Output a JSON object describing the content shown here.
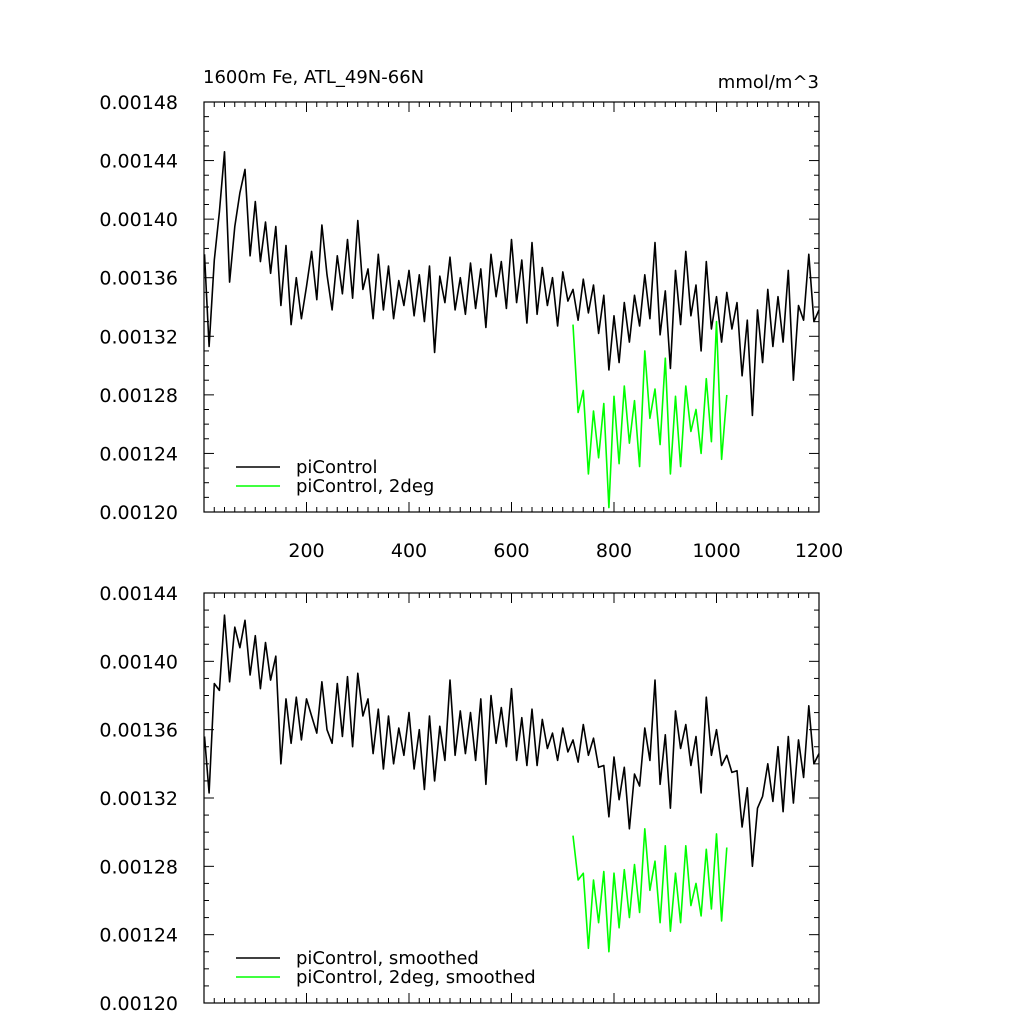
{
  "chart_data": [
    {
      "type": "line",
      "title": "1600m Fe, ATL_49N-66N",
      "units": "mmol/m^3",
      "xlim": [
        0,
        1200
      ],
      "ylim": [
        0.0012,
        0.00148
      ],
      "x_ticks": [
        "200",
        "400",
        "600",
        "800",
        "1000",
        "1200"
      ],
      "y_ticks": [
        "0.00120",
        "0.00124",
        "0.00128",
        "0.00132",
        "0.00136",
        "0.00140",
        "0.00144",
        "0.00148"
      ],
      "legend_position": "bottom-left",
      "series": [
        {
          "name": "piControl",
          "color": "#000000",
          "x": [
            1,
            10,
            20,
            30,
            40,
            50,
            60,
            70,
            80,
            90,
            100,
            110,
            120,
            130,
            140,
            150,
            160,
            170,
            180,
            190,
            200,
            210,
            220,
            230,
            240,
            250,
            260,
            270,
            280,
            290,
            300,
            310,
            320,
            330,
            340,
            350,
            360,
            370,
            380,
            390,
            400,
            410,
            420,
            430,
            440,
            450,
            460,
            470,
            480,
            490,
            500,
            510,
            520,
            530,
            540,
            550,
            560,
            570,
            580,
            590,
            600,
            610,
            620,
            630,
            640,
            650,
            660,
            670,
            680,
            690,
            700,
            710,
            720,
            730,
            740,
            750,
            760,
            770,
            780,
            790,
            800,
            810,
            820,
            830,
            840,
            850,
            860,
            870,
            880,
            890,
            900,
            910,
            920,
            930,
            940,
            950,
            960,
            970,
            980,
            990,
            1000,
            1010,
            1020,
            1030,
            1040,
            1050,
            1060,
            1070,
            1080,
            1090,
            1100,
            1110,
            1120,
            1130,
            1140,
            1150,
            1160,
            1170,
            1180,
            1190,
            1200
          ],
          "y": [
            0.001376,
            0.001313,
            0.001372,
            0.001405,
            0.001446,
            0.001357,
            0.001395,
            0.001418,
            0.001434,
            0.001375,
            0.001412,
            0.001371,
            0.001398,
            0.001363,
            0.001395,
            0.001341,
            0.001382,
            0.001328,
            0.00136,
            0.001332,
            0.001354,
            0.001378,
            0.001345,
            0.001396,
            0.001362,
            0.001338,
            0.001375,
            0.001349,
            0.001386,
            0.001346,
            0.001399,
            0.001352,
            0.001366,
            0.001332,
            0.001376,
            0.001338,
            0.001368,
            0.001332,
            0.001358,
            0.001341,
            0.001365,
            0.001334,
            0.001362,
            0.00133,
            0.001368,
            0.001309,
            0.001361,
            0.001343,
            0.001374,
            0.001338,
            0.00136,
            0.001335,
            0.00137,
            0.001339,
            0.001366,
            0.001326,
            0.001376,
            0.001347,
            0.001371,
            0.001339,
            0.001386,
            0.001343,
            0.001372,
            0.001329,
            0.001384,
            0.001335,
            0.001367,
            0.001341,
            0.00136,
            0.001327,
            0.001364,
            0.001344,
            0.001352,
            0.001331,
            0.001359,
            0.001336,
            0.001355,
            0.001322,
            0.001348,
            0.001297,
            0.001334,
            0.001302,
            0.001343,
            0.001316,
            0.001348,
            0.001327,
            0.001362,
            0.001332,
            0.001384,
            0.001321,
            0.001351,
            0.001298,
            0.001365,
            0.001328,
            0.001378,
            0.001334,
            0.001355,
            0.00131,
            0.001371,
            0.001325,
            0.001347,
            0.001316,
            0.00135,
            0.001325,
            0.001343,
            0.001293,
            0.001331,
            0.001266,
            0.001338,
            0.001302,
            0.001352,
            0.001313,
            0.001347,
            0.001316,
            0.001365,
            0.00129,
            0.001341,
            0.001331,
            0.001376,
            0.00133,
            0.001338
          ]
        },
        {
          "name": "piControl, 2deg",
          "color": "#00ff00",
          "x": [
            720,
            730,
            740,
            750,
            760,
            770,
            780,
            790,
            800,
            810,
            820,
            830,
            840,
            850,
            860,
            870,
            880,
            890,
            900,
            910,
            920,
            930,
            940,
            950,
            960,
            970,
            980,
            990,
            1000,
            1010,
            1020
          ],
          "y": [
            0.001328,
            0.001268,
            0.001283,
            0.001226,
            0.001269,
            0.001237,
            0.001274,
            0.001203,
            0.001279,
            0.001233,
            0.001286,
            0.001247,
            0.001276,
            0.001231,
            0.00131,
            0.001264,
            0.001284,
            0.001246,
            0.001305,
            0.001226,
            0.001279,
            0.001231,
            0.001286,
            0.001255,
            0.00127,
            0.00124,
            0.001291,
            0.001248,
            0.00133,
            0.001236,
            0.00128
          ]
        }
      ]
    },
    {
      "type": "line",
      "title": "",
      "xlim": [
        0,
        1200
      ],
      "ylim": [
        0.0012,
        0.00144
      ],
      "x_ticks": [],
      "y_ticks": [
        "0.00120",
        "0.00124",
        "0.00128",
        "0.00132",
        "0.00136",
        "0.00140",
        "0.00144"
      ],
      "legend_position": "bottom-left",
      "series": [
        {
          "name": "piControl, smoothed",
          "color": "#000000",
          "x": [
            1,
            10,
            20,
            30,
            40,
            50,
            60,
            70,
            80,
            90,
            100,
            110,
            120,
            130,
            140,
            150,
            160,
            170,
            180,
            190,
            200,
            210,
            220,
            230,
            240,
            250,
            260,
            270,
            280,
            290,
            300,
            310,
            320,
            330,
            340,
            350,
            360,
            370,
            380,
            390,
            400,
            410,
            420,
            430,
            440,
            450,
            460,
            470,
            480,
            490,
            500,
            510,
            520,
            530,
            540,
            550,
            560,
            570,
            580,
            590,
            600,
            610,
            620,
            630,
            640,
            650,
            660,
            670,
            680,
            690,
            700,
            710,
            720,
            730,
            740,
            750,
            760,
            770,
            780,
            790,
            800,
            810,
            820,
            830,
            840,
            850,
            860,
            870,
            880,
            890,
            900,
            910,
            920,
            930,
            940,
            950,
            960,
            970,
            980,
            990,
            1000,
            1010,
            1020,
            1030,
            1040,
            1050,
            1060,
            1070,
            1080,
            1090,
            1100,
            1110,
            1120,
            1130,
            1140,
            1150,
            1160,
            1170,
            1180,
            1190,
            1200
          ],
          "y": [
            0.001356,
            0.001323,
            0.001387,
            0.001383,
            0.001427,
            0.001388,
            0.00142,
            0.001408,
            0.001424,
            0.001392,
            0.001415,
            0.001384,
            0.001411,
            0.001389,
            0.001403,
            0.00134,
            0.001378,
            0.001352,
            0.001379,
            0.001354,
            0.001378,
            0.001368,
            0.001358,
            0.001388,
            0.00136,
            0.001352,
            0.001387,
            0.001356,
            0.001391,
            0.00135,
            0.001393,
            0.001368,
            0.001378,
            0.001346,
            0.001372,
            0.001337,
            0.001368,
            0.00134,
            0.001361,
            0.001345,
            0.00137,
            0.001337,
            0.00136,
            0.001325,
            0.001368,
            0.00133,
            0.001362,
            0.001342,
            0.001389,
            0.001345,
            0.001371,
            0.001346,
            0.00137,
            0.001342,
            0.001378,
            0.001328,
            0.00138,
            0.001352,
            0.001373,
            0.00135,
            0.001384,
            0.001342,
            0.001367,
            0.001339,
            0.001372,
            0.001339,
            0.001366,
            0.001349,
            0.001358,
            0.001342,
            0.001361,
            0.001347,
            0.001354,
            0.001341,
            0.001363,
            0.001345,
            0.001355,
            0.001338,
            0.001339,
            0.001309,
            0.001344,
            0.001319,
            0.001338,
            0.001302,
            0.001334,
            0.001327,
            0.001361,
            0.001342,
            0.001389,
            0.001328,
            0.001357,
            0.001314,
            0.001371,
            0.001349,
            0.001363,
            0.001339,
            0.001356,
            0.001323,
            0.001379,
            0.001345,
            0.00136,
            0.001339,
            0.001345,
            0.001335,
            0.001336,
            0.001303,
            0.001326,
            0.00128,
            0.001314,
            0.001321,
            0.00134,
            0.001318,
            0.00135,
            0.001312,
            0.001356,
            0.001317,
            0.001354,
            0.001332,
            0.001374,
            0.00134,
            0.001346
          ]
        },
        {
          "name": "piControl, 2deg, smoothed",
          "color": "#00ff00",
          "x": [
            720,
            730,
            740,
            750,
            760,
            770,
            780,
            790,
            800,
            810,
            820,
            830,
            840,
            850,
            860,
            870,
            880,
            890,
            900,
            910,
            920,
            930,
            940,
            950,
            960,
            970,
            980,
            990,
            1000,
            1010,
            1020
          ],
          "y": [
            0.001298,
            0.001272,
            0.001276,
            0.001232,
            0.001272,
            0.001247,
            0.001277,
            0.00123,
            0.001276,
            0.001244,
            0.001278,
            0.00125,
            0.001281,
            0.001253,
            0.001302,
            0.001266,
            0.001283,
            0.001247,
            0.001292,
            0.001242,
            0.001276,
            0.001247,
            0.001292,
            0.001257,
            0.00127,
            0.001251,
            0.00129,
            0.001255,
            0.001299,
            0.001248,
            0.001291
          ]
        }
      ]
    }
  ]
}
